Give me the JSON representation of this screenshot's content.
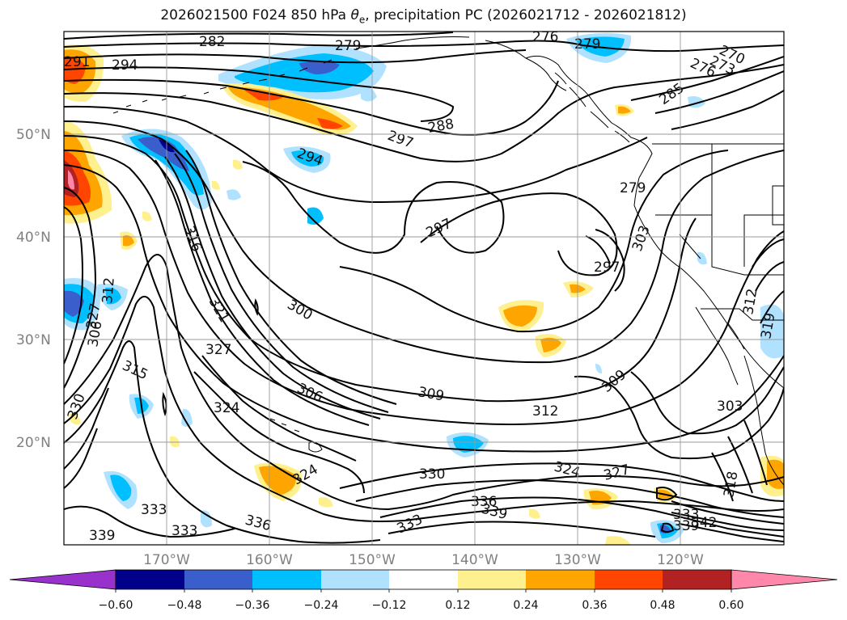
{
  "title": {
    "prefix": "2026021500 F024 850 hPa",
    "symbol": "θ",
    "subscript": "e",
    "suffix": ", precipitation PC (2026021712 - 2026021812)"
  },
  "map": {
    "lon_range": [
      -179,
      -109
    ],
    "lat_range": [
      10,
      60
    ],
    "lat_labels": [
      "20°N",
      "30°N",
      "40°N",
      "50°N"
    ],
    "lon_labels": [
      "170°W",
      "160°W",
      "150°W",
      "140°W",
      "130°W",
      "120°W"
    ],
    "contour_labels": [
      "282",
      "279",
      "276",
      "279",
      "270",
      "273",
      "276",
      "291",
      "294",
      "285",
      "297",
      "288",
      "294",
      "297",
      "279",
      "316",
      "303",
      "297",
      "309",
      "300",
      "327",
      "306",
      "312",
      "321",
      "327",
      "315",
      "306",
      "309",
      "312",
      "303",
      "330",
      "324",
      "324",
      "312",
      "324",
      "327",
      "318",
      "330",
      "336",
      "339",
      "333",
      "336",
      "333",
      "333",
      "339",
      "342",
      "333",
      "339",
      "319"
    ]
  },
  "colorbar": {
    "ticks": [
      "−0.60",
      "−0.48",
      "−0.36",
      "−0.24",
      "−0.12",
      "0.12",
      "0.24",
      "0.36",
      "0.48",
      "0.60"
    ],
    "colors": [
      "#9932cc",
      "#00008b",
      "#3a5fcd",
      "#00bfff",
      "#b0e2ff",
      "#ffffff",
      "#fff08f",
      "#ffa500",
      "#ff4500",
      "#b22222",
      "#ff88aa"
    ]
  }
}
